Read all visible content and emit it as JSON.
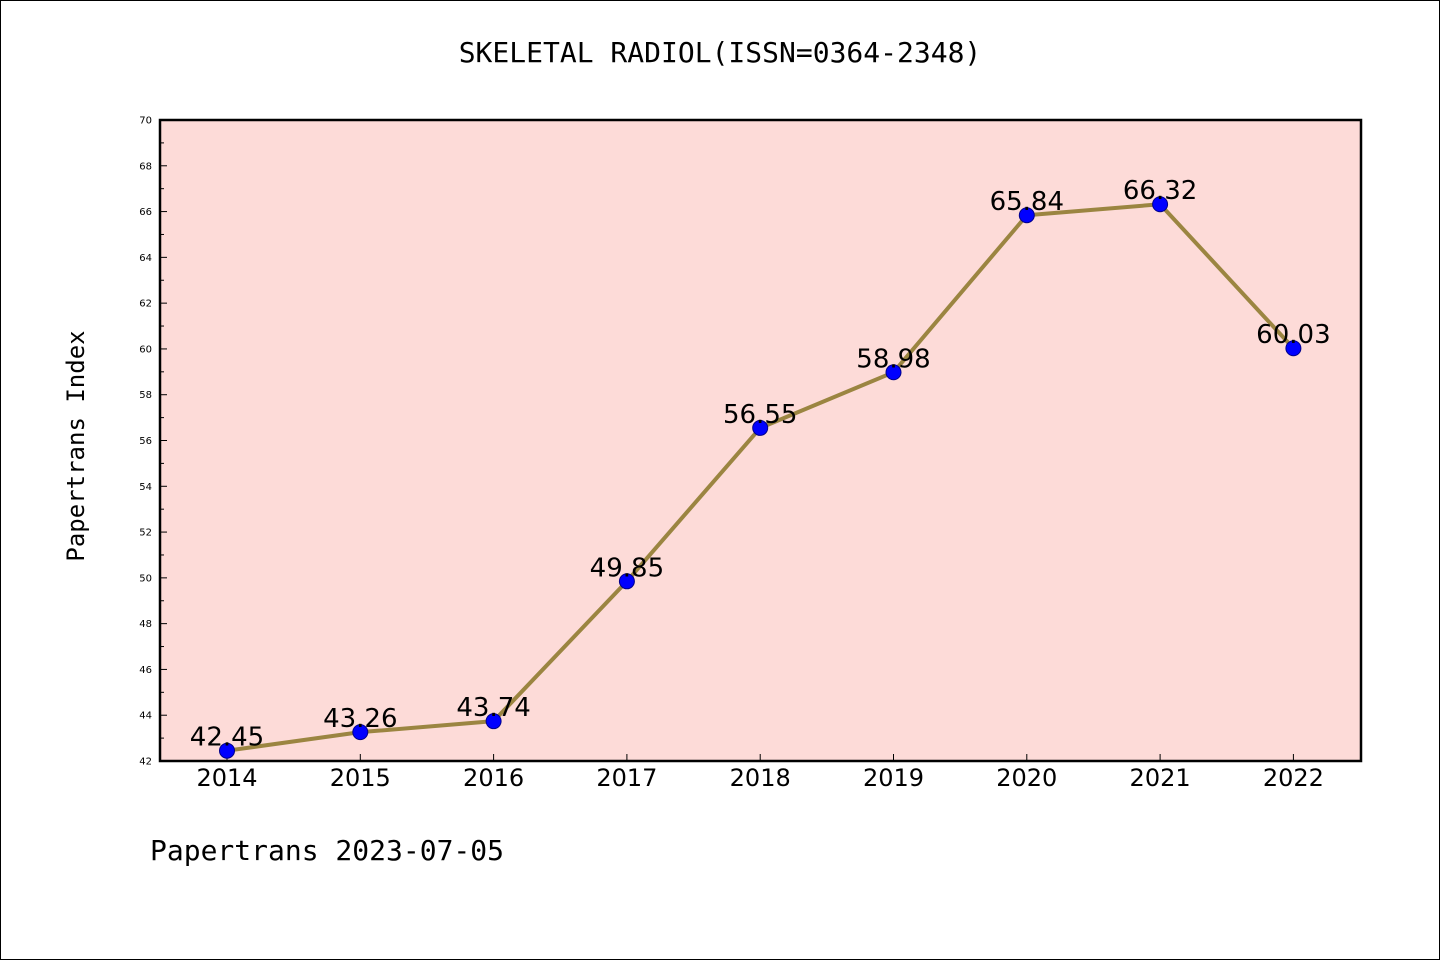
{
  "title": "SKELETAL RADIOL(ISSN=0364-2348)",
  "footer": "Papertrans 2023-07-05",
  "colors": {
    "plot_background": "#fddbd8",
    "line": "#9b8541",
    "marker": "#0000ff",
    "axis": "#000000"
  },
  "chart_data": {
    "type": "line",
    "title": "SKELETAL RADIOL(ISSN=0364-2348)",
    "xlabel": "",
    "ylabel": "Papertrans Index",
    "x": [
      "2014",
      "2015",
      "2016",
      "2017",
      "2018",
      "2019",
      "2020",
      "2021",
      "2022"
    ],
    "values": [
      42.45,
      43.26,
      43.74,
      49.85,
      56.55,
      58.98,
      65.84,
      66.32,
      60.03
    ],
    "data_labels": [
      "42.45",
      "43.26",
      "43.74",
      "49.85",
      "56.55",
      "58.98",
      "65.84",
      "66.32",
      "60.03"
    ],
    "ylim": [
      42,
      70
    ],
    "yticks": [
      42,
      44,
      46,
      48,
      50,
      52,
      54,
      56,
      58,
      60,
      62,
      64,
      66,
      68,
      70
    ],
    "grid": false
  }
}
